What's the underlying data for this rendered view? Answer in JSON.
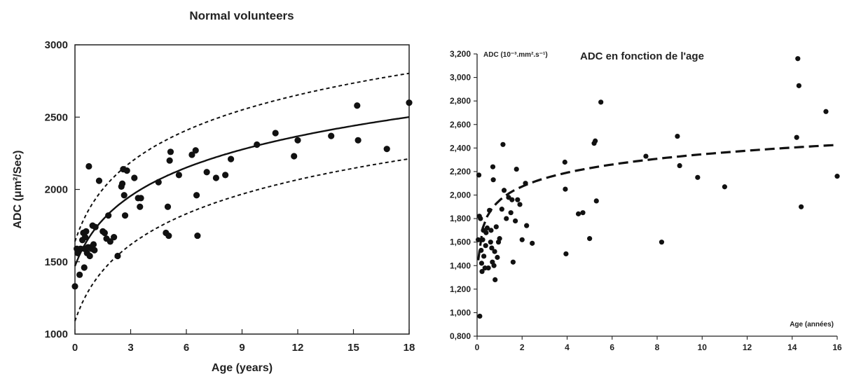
{
  "chart_data": [
    {
      "type": "scatter",
      "title": "Normal volunteers",
      "xlabel": "Age (years)",
      "ylabel": "ADC (μm²/Sec)",
      "xlim": [
        0,
        18
      ],
      "ylim": [
        1000,
        3000
      ],
      "xticks": [
        "0",
        "3",
        "6",
        "9",
        "12",
        "15",
        "18"
      ],
      "yticks": [
        "1000",
        "1500",
        "2000",
        "2500",
        "3000"
      ],
      "grid": false,
      "legend": "none",
      "points": [
        [
          0.0,
          1330
        ],
        [
          0.1,
          1590
        ],
        [
          0.15,
          1560
        ],
        [
          0.2,
          1580
        ],
        [
          0.25,
          1410
        ],
        [
          0.3,
          1590
        ],
        [
          0.4,
          1650
        ],
        [
          0.45,
          1700
        ],
        [
          0.5,
          1460
        ],
        [
          0.5,
          1590
        ],
        [
          0.55,
          1670
        ],
        [
          0.6,
          1710
        ],
        [
          0.65,
          1560
        ],
        [
          0.7,
          1600
        ],
        [
          0.75,
          2160
        ],
        [
          0.8,
          1540
        ],
        [
          0.85,
          1600
        ],
        [
          0.9,
          1590
        ],
        [
          0.95,
          1750
        ],
        [
          1.0,
          1620
        ],
        [
          1.05,
          1580
        ],
        [
          1.1,
          1740
        ],
        [
          1.3,
          2060
        ],
        [
          1.5,
          1710
        ],
        [
          1.6,
          1700
        ],
        [
          1.7,
          1660
        ],
        [
          1.8,
          1820
        ],
        [
          1.9,
          1640
        ],
        [
          2.1,
          1670
        ],
        [
          2.3,
          1540
        ],
        [
          2.5,
          2020
        ],
        [
          2.55,
          2040
        ],
        [
          2.6,
          2140
        ],
        [
          2.65,
          1960
        ],
        [
          2.7,
          1820
        ],
        [
          2.8,
          2130
        ],
        [
          3.2,
          2080
        ],
        [
          3.4,
          1940
        ],
        [
          3.5,
          1880
        ],
        [
          3.55,
          1940
        ],
        [
          4.5,
          2050
        ],
        [
          4.9,
          1700
        ],
        [
          5.0,
          1880
        ],
        [
          5.05,
          1680
        ],
        [
          5.1,
          2200
        ],
        [
          5.15,
          2260
        ],
        [
          5.6,
          2100
        ],
        [
          6.3,
          2240
        ],
        [
          6.5,
          2270
        ],
        [
          6.55,
          1960
        ],
        [
          6.6,
          1680
        ],
        [
          7.1,
          2120
        ],
        [
          7.6,
          2080
        ],
        [
          8.1,
          2100
        ],
        [
          8.4,
          2210
        ],
        [
          9.8,
          2310
        ],
        [
          10.8,
          2390
        ],
        [
          11.8,
          2230
        ],
        [
          12.0,
          2340
        ],
        [
          13.8,
          2370
        ],
        [
          15.2,
          2580
        ],
        [
          15.25,
          2340
        ],
        [
          16.8,
          2280
        ],
        [
          18.0,
          2600
        ]
      ],
      "fit": "solid central curve with dashed upper and lower bounds"
    },
    {
      "type": "scatter",
      "title": "ADC en fonction de l'age",
      "ylabel": "ADC (10⁻³.mm².s⁻¹)",
      "xlabel": "Age (années)",
      "xlim": [
        0,
        16
      ],
      "ylim": [
        0.8,
        3.2
      ],
      "xticks": [
        "0",
        "2",
        "4",
        "6",
        "8",
        "10",
        "12",
        "14",
        "16"
      ],
      "yticks": [
        "0,800",
        "1,000",
        "1,200",
        "1,400",
        "1,600",
        "1,800",
        "2,000",
        "2,200",
        "2,400",
        "2,600",
        "2,800",
        "3,000",
        "3,200"
      ],
      "grid": false,
      "legend": "none",
      "points": [
        [
          0.05,
          1.62
        ],
        [
          0.08,
          2.17
        ],
        [
          0.1,
          1.82
        ],
        [
          0.12,
          0.97
        ],
        [
          0.15,
          1.8
        ],
        [
          0.18,
          1.53
        ],
        [
          0.2,
          1.42
        ],
        [
          0.22,
          1.35
        ],
        [
          0.25,
          1.62
        ],
        [
          0.28,
          1.7
        ],
        [
          0.3,
          1.48
        ],
        [
          0.35,
          1.38
        ],
        [
          0.38,
          1.57
        ],
        [
          0.4,
          1.68
        ],
        [
          0.45,
          1.72
        ],
        [
          0.5,
          1.38
        ],
        [
          0.55,
          1.87
        ],
        [
          0.6,
          1.6
        ],
        [
          0.62,
          1.7
        ],
        [
          0.65,
          1.55
        ],
        [
          0.68,
          1.43
        ],
        [
          0.7,
          2.24
        ],
        [
          0.72,
          2.13
        ],
        [
          0.75,
          1.4
        ],
        [
          0.78,
          1.52
        ],
        [
          0.8,
          1.28
        ],
        [
          0.85,
          1.73
        ],
        [
          0.9,
          1.47
        ],
        [
          0.95,
          1.6
        ],
        [
          1.0,
          1.63
        ],
        [
          1.1,
          1.88
        ],
        [
          1.15,
          2.43
        ],
        [
          1.2,
          2.04
        ],
        [
          1.3,
          1.8
        ],
        [
          1.4,
          1.98
        ],
        [
          1.5,
          1.85
        ],
        [
          1.55,
          1.96
        ],
        [
          1.6,
          1.43
        ],
        [
          1.7,
          1.78
        ],
        [
          1.75,
          2.22
        ],
        [
          1.8,
          1.96
        ],
        [
          1.9,
          1.92
        ],
        [
          2.0,
          1.62
        ],
        [
          2.15,
          2.1
        ],
        [
          2.2,
          1.74
        ],
        [
          2.45,
          1.59
        ],
        [
          3.9,
          2.28
        ],
        [
          3.92,
          2.05
        ],
        [
          3.95,
          1.5
        ],
        [
          4.5,
          1.84
        ],
        [
          4.7,
          1.85
        ],
        [
          5.0,
          1.63
        ],
        [
          5.2,
          2.44
        ],
        [
          5.25,
          2.46
        ],
        [
          5.3,
          1.95
        ],
        [
          5.5,
          2.79
        ],
        [
          7.5,
          2.33
        ],
        [
          8.2,
          1.6
        ],
        [
          8.9,
          2.5
        ],
        [
          9.0,
          2.25
        ],
        [
          9.8,
          2.15
        ],
        [
          11.0,
          2.07
        ],
        [
          14.2,
          2.49
        ],
        [
          14.25,
          3.16
        ],
        [
          14.3,
          2.93
        ],
        [
          14.4,
          1.9
        ],
        [
          15.5,
          2.71
        ],
        [
          16.0,
          2.16
        ]
      ],
      "fit": "dashed logarithmic trend line"
    }
  ]
}
